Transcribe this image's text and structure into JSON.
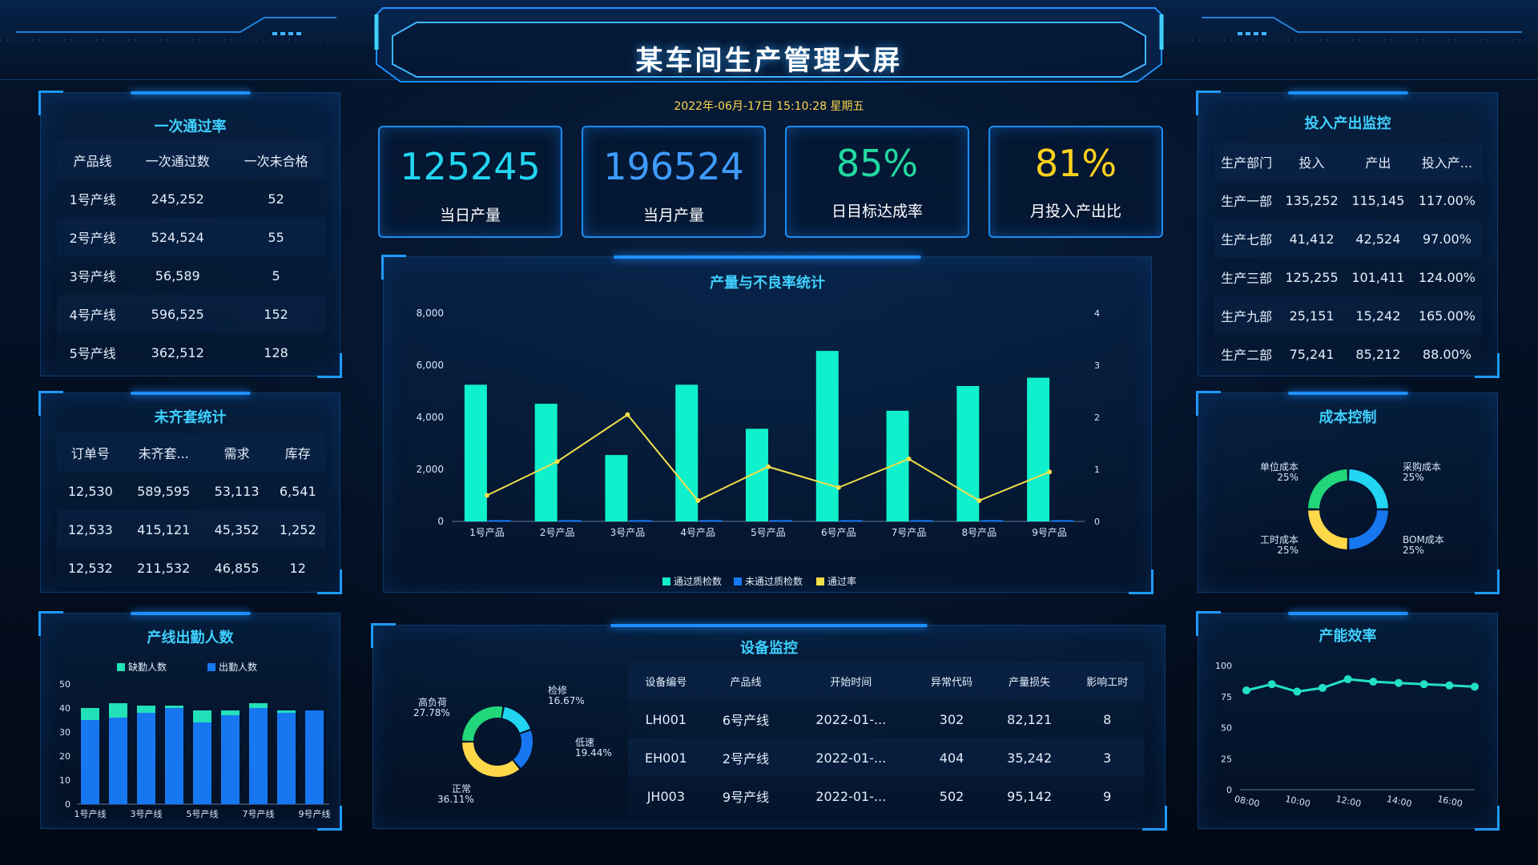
{
  "header": {
    "title": "某车间生产管理大屏",
    "datetime": "2022年-06月-17日 15:10:28 星期五"
  },
  "kpis": [
    {
      "value": "125245",
      "label": "当日产量",
      "color": "#22d6f2"
    },
    {
      "value": "196524",
      "label": "当月产量",
      "color": "#3f9bff"
    },
    {
      "value": "85%",
      "label": "日目标达成率",
      "color": "#22d9a0"
    },
    {
      "value": "81%",
      "label": "月投入产出比",
      "color": "#ffd11e"
    }
  ],
  "first_pass": {
    "title": "一次通过率",
    "headers": [
      "产品线",
      "一次通过数",
      "一次未合格"
    ],
    "rows": [
      [
        "1号产线",
        "245,252",
        "52"
      ],
      [
        "2号产线",
        "524,524",
        "55"
      ],
      [
        "3号产线",
        "56,589",
        "5"
      ],
      [
        "4号产线",
        "596,525",
        "152"
      ],
      [
        "5号产线",
        "362,512",
        "128"
      ]
    ]
  },
  "incomplete": {
    "title": "未齐套统计",
    "headers": [
      "订单号",
      "未齐套...",
      "需求",
      "库存"
    ],
    "rows": [
      [
        "12,530",
        "589,595",
        "53,113",
        "6,541"
      ],
      [
        "12,533",
        "415,121",
        "45,352",
        "1,252"
      ],
      [
        "12,532",
        "211,532",
        "46,855",
        "12"
      ]
    ]
  },
  "attendance": {
    "title": "产线出勤人数",
    "legend": [
      "缺勤人数",
      "出勤人数"
    ],
    "colors": {
      "absent": "#22e0b8",
      "present": "#1677f0"
    },
    "chart_data": {
      "type": "bar",
      "categories": [
        "1号产线",
        "2号产线",
        "3号产线",
        "4号产线",
        "5号产线",
        "6号产线",
        "7号产线",
        "8号产线",
        "9号产线"
      ],
      "tick_labels": [
        "1号产线",
        "3号产线",
        "5号产线",
        "7号产线",
        "9号产线"
      ],
      "series": [
        {
          "name": "出勤人数",
          "values": [
            35,
            36,
            38,
            40,
            34,
            37,
            40,
            38,
            39
          ]
        },
        {
          "name": "缺勤人数",
          "values": [
            5,
            6,
            3,
            1,
            5,
            2,
            2,
            1,
            0
          ]
        }
      ],
      "ylim": [
        0,
        50
      ],
      "yticks": [
        "0",
        "10",
        "20",
        "30",
        "40",
        "50"
      ],
      "stacked": true
    }
  },
  "production": {
    "title": "产量与不良率统计",
    "legend": [
      "通过质检数",
      "未通过质检数",
      "通过率"
    ],
    "colors": {
      "pass": "#0ff0cc",
      "fail": "#1677f0",
      "rate": "#f2e04a"
    },
    "chart_data": {
      "type": "bar",
      "categories": [
        "1号产品",
        "2号产品",
        "3号产品",
        "4号产品",
        "5号产品",
        "6号产品",
        "7号产品",
        "8号产品",
        "9号产品"
      ],
      "series": [
        {
          "name": "通过质检数",
          "values": [
            5250,
            4520,
            2550,
            5250,
            3560,
            6550,
            4250,
            5200,
            5520
          ]
        },
        {
          "name": "未通过质检数",
          "values": [
            50,
            50,
            50,
            50,
            50,
            50,
            50,
            50,
            50
          ]
        },
        {
          "name": "通过率",
          "values": [
            0.5,
            1.15,
            2.05,
            0.4,
            1.05,
            0.65,
            1.2,
            0.4,
            0.95
          ],
          "axis": "right"
        }
      ],
      "ylim": [
        0,
        8000
      ],
      "yticks": [
        "0",
        "2,000",
        "4,000",
        "6,000",
        "8,000"
      ],
      "y2lim": [
        0,
        4
      ],
      "y2ticks": [
        "0",
        "1",
        "2",
        "3",
        "4"
      ]
    }
  },
  "equipment": {
    "title": "设备监控",
    "headers": [
      "设备编号",
      "产品线",
      "开始时间",
      "异常代码",
      "产量损失",
      "影响工时"
    ],
    "rows": [
      [
        "LH001",
        "6号产线",
        "2022-01-...",
        "302",
        "82,121",
        "8"
      ],
      [
        "EH001",
        "2号产线",
        "2022-01-...",
        "404",
        "35,242",
        "3"
      ],
      [
        "JH003",
        "9号产线",
        "2022-01-...",
        "502",
        "95,142",
        "9"
      ]
    ],
    "chart_data": {
      "type": "pie",
      "slices": [
        {
          "name": "高负荷",
          "pct": "27.78%",
          "value": 27.78,
          "color": "#22d67a"
        },
        {
          "name": "检修",
          "pct": "16.67%",
          "value": 16.67,
          "color": "#22d6f2"
        },
        {
          "name": "低速",
          "pct": "19.44%",
          "value": 19.44,
          "color": "#1677f0"
        },
        {
          "name": "正常",
          "pct": "36.11%",
          "value": 36.11,
          "color": "#ffd84a"
        }
      ]
    }
  },
  "io": {
    "title": "投入产出监控",
    "headers": [
      "生产部门",
      "投入",
      "产出",
      "投入产..."
    ],
    "rows": [
      [
        "生产一部",
        "135,252",
        "115,145",
        "117.00%"
      ],
      [
        "生产七部",
        "41,412",
        "42,524",
        "97.00%"
      ],
      [
        "生产三部",
        "125,255",
        "101,411",
        "124.00%"
      ],
      [
        "生产九部",
        "25,151",
        "15,242",
        "165.00%"
      ],
      [
        "生产二部",
        "75,241",
        "85,212",
        "88.00%"
      ]
    ]
  },
  "cost": {
    "title": "成本控制",
    "chart_data": {
      "type": "pie",
      "slices": [
        {
          "name": "采购成本",
          "pct": "25%",
          "value": 25,
          "color": "#22d6f2"
        },
        {
          "name": "BOM成本",
          "pct": "25%",
          "value": 25,
          "color": "#1677f0"
        },
        {
          "name": "工时成本",
          "pct": "25%",
          "value": 25,
          "color": "#ffd84a"
        },
        {
          "name": "单位成本",
          "pct": "25%",
          "value": 25,
          "color": "#22d67a"
        }
      ]
    }
  },
  "efficiency": {
    "title": "产能效率",
    "color": "#22e0c8",
    "chart_data": {
      "type": "line",
      "x": [
        "08:00",
        "09:00",
        "10:00",
        "11:00",
        "12:00",
        "13:00",
        "14:00",
        "15:00",
        "16:00",
        "17:00"
      ],
      "xticks": [
        "08:00",
        "10:00",
        "12:00",
        "14:00",
        "16:00"
      ],
      "values": [
        80,
        85,
        79,
        82,
        89,
        87,
        86,
        85,
        84,
        83
      ],
      "ylim": [
        0,
        100
      ],
      "yticks": [
        "0",
        "25",
        "50",
        "75",
        "100"
      ]
    }
  }
}
